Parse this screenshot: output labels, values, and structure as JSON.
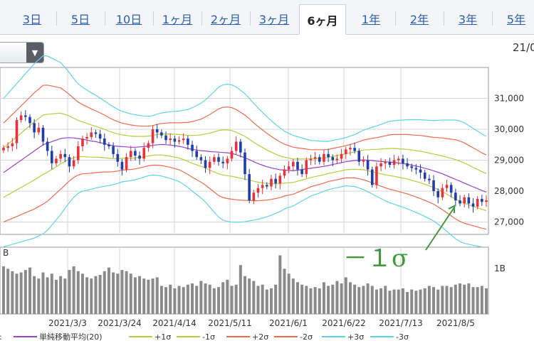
{
  "tabs": [
    {
      "label": "3日",
      "active": false
    },
    {
      "label": "5日",
      "active": false
    },
    {
      "label": "10日",
      "active": false
    },
    {
      "label": "1ヶ月",
      "active": false
    },
    {
      "label": "2ヶ月",
      "active": false
    },
    {
      "label": "3ヶ月",
      "active": false
    },
    {
      "label": "6ヶ月",
      "active": true
    },
    {
      "label": "1年",
      "active": false
    },
    {
      "label": "2年",
      "active": false
    },
    {
      "label": "3年",
      "active": false
    },
    {
      "label": "5年",
      "active": false
    }
  ],
  "header": {
    "date_label": "21/0",
    "select_icon": "chevron-down-icon"
  },
  "colors": {
    "up": "#e8313a",
    "down": "#1f3ea8",
    "sma": "#9b3fd1",
    "sigma1": "#b7cc3c",
    "sigma2": "#ee6b4d",
    "sigma3": "#5fd3e6",
    "volume": "#8a8a8a",
    "annotation": "#3f9a3c"
  },
  "chart_data": {
    "type": "candlestick",
    "y_ticks": [
      "31,000",
      "30,000",
      "29,000",
      "28,000",
      "27,000"
    ],
    "y_tick_values": [
      31000,
      30000,
      29000,
      28000,
      27000
    ],
    "ylim": [
      26600,
      32000
    ],
    "x_tick_labels": [
      "2021/3/3",
      "2021/3/24",
      "2021/4/14",
      "2021/5/11",
      "2021/6/1",
      "2021/6/22",
      "2021/7/13",
      "2021/8/5"
    ],
    "volume_panel_label": "B",
    "volume_tick": "1B",
    "annotation_text": "－１σ",
    "legend": [
      {
        "label": "単純移動平均(20)",
        "color_key": "sma"
      },
      {
        "label": "+1σ",
        "color_key": "sigma1"
      },
      {
        "label": "-1σ",
        "color_key": "sigma1"
      },
      {
        "label": "+2σ",
        "color_key": "sigma2"
      },
      {
        "label": "-2σ",
        "color_key": "sigma2"
      },
      {
        "label": "+3σ",
        "color_key": "sigma3"
      },
      {
        "label": "-3σ",
        "color_key": "sigma3"
      }
    ],
    "legend_prefix": ":",
    "close_series": [
      29400,
      29450,
      29550,
      30300,
      30450,
      30400,
      30200,
      29900,
      30050,
      29600,
      29300,
      28900,
      29050,
      29200,
      29100,
      28800,
      29000,
      29450,
      29700,
      29750,
      29900,
      29850,
      29700,
      29500,
      29450,
      29200,
      28950,
      28700,
      29100,
      29300,
      29150,
      29050,
      29400,
      29550,
      30000,
      29900,
      29800,
      29650,
      29700,
      29600,
      29650,
      29700,
      29500,
      29300,
      29100,
      29000,
      28750,
      28950,
      29100,
      28950,
      28900,
      29050,
      29300,
      29600,
      29250,
      28550,
      27700,
      27950,
      28100,
      28200,
      28150,
      28400,
      28250,
      28500,
      28700,
      28800,
      28950,
      28700,
      28550,
      29000,
      29050,
      29100,
      28950,
      29200,
      29100,
      29000,
      29050,
      29200,
      29350,
      29400,
      29300,
      28950,
      29000,
      28700,
      28200,
      28800,
      28900,
      28950,
      28850,
      29000,
      29050,
      28900,
      28800,
      28750,
      28700,
      28600,
      28400,
      28350,
      28000,
      27800,
      28100,
      28200,
      27950,
      27700,
      27600,
      27800,
      27600,
      27500,
      27750,
      27650,
      27700
    ],
    "sma_series": [
      28600,
      28700,
      28800,
      28900,
      29000,
      29100,
      29200,
      29300,
      29400,
      29500,
      29550,
      29600,
      29650,
      29700,
      29720,
      29730,
      29720,
      29700,
      29680,
      29650,
      29620,
      29600,
      29570,
      29540,
      29500,
      29470,
      29450,
      29440,
      29430,
      29420,
      29420,
      29430,
      29440,
      29460,
      29480,
      29500,
      29510,
      29500,
      29490,
      29470,
      29450,
      29420,
      29380,
      29350,
      29330,
      29310,
      29300,
      29280,
      29270,
      29260,
      29250,
      29240,
      29220,
      29180,
      29130,
      29080,
      29020,
      28950,
      28890,
      28840,
      28790,
      28750,
      28720,
      28690,
      28680,
      28670,
      28660,
      28680,
      28700,
      28720,
      28740,
      28760,
      28780,
      28800,
      28830,
      28860,
      28890,
      28920,
      28950,
      28970,
      28990,
      29000,
      29010,
      29000,
      28990,
      28970,
      28960,
      28950,
      28940,
      28930,
      28910,
      28890,
      28870,
      28840,
      28810,
      28780,
      28740,
      28700,
      28660,
      28610,
      28560,
      28500,
      28440,
      28380,
      28320,
      28260,
      28200,
      28140,
      28080,
      28020,
      27970
    ],
    "sigma_series": [
      800,
      820,
      840,
      860,
      880,
      900,
      920,
      940,
      950,
      960,
      940,
      900,
      860,
      820,
      760,
      700,
      640,
      590,
      560,
      540,
      520,
      500,
      480,
      460,
      440,
      420,
      400,
      380,
      370,
      360,
      350,
      340,
      330,
      320,
      320,
      330,
      340,
      350,
      360,
      370,
      380,
      400,
      420,
      450,
      480,
      510,
      550,
      600,
      650,
      700,
      730,
      740,
      740,
      730,
      710,
      690,
      660,
      630,
      600,
      570,
      540,
      510,
      480,
      450,
      420,
      400,
      380,
      360,
      340,
      320,
      300,
      290,
      280,
      270,
      260,
      260,
      260,
      260,
      260,
      270,
      280,
      300,
      320,
      340,
      360,
      380,
      400,
      420,
      440,
      450,
      460,
      470,
      480,
      490,
      500,
      510,
      520,
      530,
      540,
      560,
      580,
      600,
      620,
      640,
      650,
      650,
      640,
      630,
      620,
      610,
      600
    ],
    "volume_series": [
      0.78,
      0.74,
      0.7,
      0.66,
      0.68,
      0.72,
      0.76,
      0.62,
      0.58,
      0.68,
      0.6,
      0.66,
      0.56,
      0.62,
      0.58,
      0.72,
      0.78,
      0.7,
      0.66,
      0.6,
      0.58,
      0.62,
      0.64,
      0.7,
      0.76,
      0.68,
      0.66,
      0.72,
      0.7,
      0.66,
      0.6,
      0.62,
      0.58,
      0.56,
      0.58,
      0.6,
      0.46,
      0.44,
      0.48,
      0.42,
      0.46,
      0.44,
      0.48,
      0.5,
      0.46,
      0.54,
      0.5,
      0.48,
      0.42,
      0.44,
      0.52,
      0.56,
      0.46,
      0.48,
      0.8,
      0.62,
      0.58,
      0.54,
      0.46,
      0.48,
      0.4,
      0.42,
      0.48,
      0.96,
      0.74,
      0.66,
      0.58,
      0.52,
      0.48,
      0.46,
      0.42,
      0.44,
      0.42,
      0.52,
      0.46,
      0.48,
      0.54,
      0.5,
      0.6,
      0.52,
      0.48,
      0.44,
      0.46,
      0.5,
      0.46,
      0.4,
      0.42,
      0.46,
      0.38,
      0.4,
      0.4,
      0.42,
      0.36,
      0.4,
      0.38,
      0.4,
      0.42,
      0.46,
      0.44,
      0.4,
      0.46,
      0.46,
      0.44,
      0.48,
      0.5,
      0.48,
      0.5,
      0.44,
      0.44,
      0.46,
      0.42
    ]
  }
}
